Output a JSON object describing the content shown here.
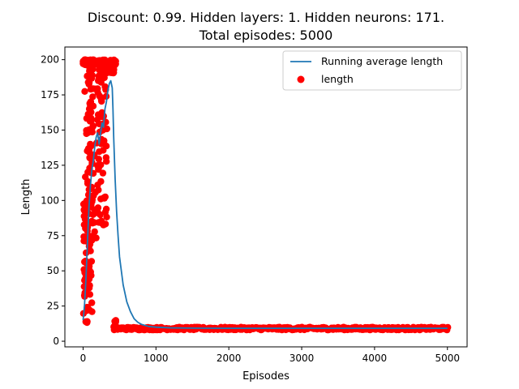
{
  "chart_data": {
    "type": "line+scatter",
    "title_line1": "Discount: 0.99. Hidden layers: 1. Hidden neurons: 171.",
    "title_line2": "Total episodes: 5000",
    "xlabel": "Episodes",
    "ylabel": "Length",
    "xlim": [
      -250,
      5270
    ],
    "ylim": [
      -4,
      209
    ],
    "xticks": [
      0,
      1000,
      2000,
      3000,
      4000,
      5000
    ],
    "yticks": [
      0,
      25,
      50,
      75,
      100,
      125,
      150,
      175,
      200
    ],
    "legend_position": "top-right",
    "grid": false,
    "series": [
      {
        "name": "Running average length",
        "type": "line",
        "color": "#1f77b4",
        "x": [
          0,
          10,
          20,
          40,
          60,
          80,
          100,
          120,
          140,
          160,
          180,
          200,
          220,
          240,
          260,
          280,
          300,
          320,
          340,
          360,
          380,
          400,
          410,
          420,
          440,
          460,
          480,
          500,
          550,
          600,
          650,
          700,
          750,
          800,
          900,
          1000,
          1200,
          1500,
          2000,
          3000,
          4000,
          5000
        ],
        "y": [
          15,
          20,
          26,
          45,
          70,
          95,
          110,
          122,
          128,
          138,
          145,
          148,
          140,
          148,
          155,
          152,
          165,
          170,
          178,
          183,
          185,
          180,
          165,
          145,
          115,
          92,
          75,
          60,
          40,
          28,
          21,
          16,
          13.5,
          12,
          10.5,
          10,
          9.5,
          9.3,
          9.2,
          9.2,
          9.2,
          9.2
        ]
      },
      {
        "name": "length",
        "type": "scatter",
        "color": "#ff0000",
        "x_range": [
          0,
          5000
        ],
        "y_band_after_430": [
          8,
          10
        ],
        "clusters": [
          {
            "x_range": [
              0,
              60
            ],
            "y_range": [
              12,
              100
            ]
          },
          {
            "x_range": [
              20,
              110
            ],
            "y_range": [
              14,
              200
            ]
          },
          {
            "x_range": [
              60,
              140
            ],
            "y_range": [
              20,
              200
            ]
          },
          {
            "x_range": [
              110,
              260
            ],
            "y_range": [
              70,
              200
            ]
          },
          {
            "x_range": [
              200,
              330
            ],
            "y_range": [
              80,
              200
            ]
          },
          {
            "x_range": [
              300,
              430
            ],
            "y_range": [
              190,
              200
            ]
          },
          {
            "x_range": [
              420,
              450
            ],
            "y_range": [
              8,
              17
            ]
          }
        ]
      }
    ]
  }
}
